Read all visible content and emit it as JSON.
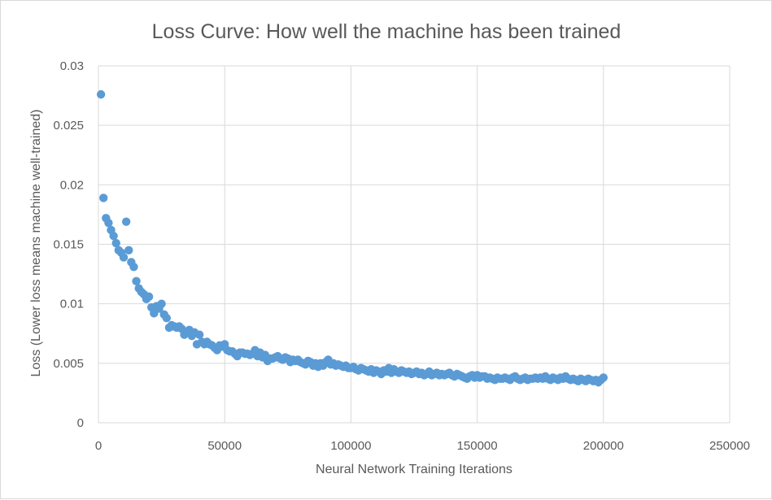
{
  "chart_data": {
    "type": "scatter",
    "title": "Loss Curve: How well the machine has been trained",
    "xlabel": "Neural Network Training Iterations",
    "ylabel": "Loss (Lower loss means machine well-trained)",
    "xlim": [
      0,
      250000
    ],
    "ylim": [
      0,
      0.03
    ],
    "x_ticks": [
      0,
      50000,
      100000,
      150000,
      200000,
      250000
    ],
    "y_ticks": [
      0,
      0.005,
      0.01,
      0.015,
      0.02,
      0.025,
      0.03
    ],
    "x_tick_labels": [
      "0",
      "50000",
      "100000",
      "150000",
      "200000",
      "250000"
    ],
    "y_tick_labels": [
      "0",
      "0.005",
      "0.01",
      "0.015",
      "0.02",
      "0.025",
      "0.03"
    ],
    "grid": true,
    "marker_color": "#5b9bd5",
    "series": [
      {
        "points": [
          [
            1000,
            0.0276
          ],
          [
            2000,
            0.0189
          ],
          [
            3000,
            0.0172
          ],
          [
            4000,
            0.0168
          ],
          [
            5000,
            0.0162
          ],
          [
            6000,
            0.0157
          ],
          [
            7000,
            0.0151
          ],
          [
            8000,
            0.0145
          ],
          [
            9000,
            0.0143
          ],
          [
            10000,
            0.0139
          ],
          [
            11000,
            0.0169
          ],
          [
            12000,
            0.0145
          ],
          [
            13000,
            0.0135
          ],
          [
            14000,
            0.0131
          ],
          [
            15000,
            0.0119
          ],
          [
            16000,
            0.0113
          ],
          [
            17000,
            0.011
          ],
          [
            18000,
            0.0108
          ],
          [
            19000,
            0.0104
          ],
          [
            20000,
            0.0106
          ],
          [
            21000,
            0.0097
          ],
          [
            22000,
            0.0092
          ],
          [
            23000,
            0.0098
          ],
          [
            24000,
            0.0096
          ],
          [
            25000,
            0.01
          ],
          [
            26000,
            0.0091
          ],
          [
            27000,
            0.0088
          ],
          [
            28000,
            0.008
          ],
          [
            29000,
            0.0082
          ],
          [
            30000,
            0.0081
          ],
          [
            31000,
            0.008
          ],
          [
            32000,
            0.0081
          ],
          [
            33000,
            0.0079
          ],
          [
            34000,
            0.0074
          ],
          [
            35000,
            0.0076
          ],
          [
            36000,
            0.0078
          ],
          [
            37000,
            0.0073
          ],
          [
            38000,
            0.0076
          ],
          [
            39000,
            0.0066
          ],
          [
            40000,
            0.0074
          ],
          [
            41000,
            0.0068
          ],
          [
            42000,
            0.0066
          ],
          [
            43000,
            0.0068
          ],
          [
            44000,
            0.0066
          ],
          [
            45000,
            0.0065
          ],
          [
            46000,
            0.0063
          ],
          [
            47000,
            0.0061
          ],
          [
            48000,
            0.0065
          ],
          [
            49000,
            0.0064
          ],
          [
            50000,
            0.0066
          ],
          [
            51000,
            0.0061
          ],
          [
            52000,
            0.006
          ],
          [
            53000,
            0.006
          ],
          [
            54000,
            0.0058
          ],
          [
            55000,
            0.0056
          ],
          [
            56000,
            0.0059
          ],
          [
            57000,
            0.0059
          ],
          [
            58000,
            0.0058
          ],
          [
            59000,
            0.0058
          ],
          [
            60000,
            0.0057
          ],
          [
            61000,
            0.0058
          ],
          [
            62000,
            0.0061
          ],
          [
            63000,
            0.0056
          ],
          [
            64000,
            0.0059
          ],
          [
            65000,
            0.0055
          ],
          [
            66000,
            0.0057
          ],
          [
            67000,
            0.0052
          ],
          [
            68000,
            0.0054
          ],
          [
            69000,
            0.0054
          ],
          [
            70000,
            0.0055
          ],
          [
            71000,
            0.0056
          ],
          [
            72000,
            0.0054
          ],
          [
            73000,
            0.0053
          ],
          [
            74000,
            0.0055
          ],
          [
            75000,
            0.0054
          ],
          [
            76000,
            0.0051
          ],
          [
            77000,
            0.0053
          ],
          [
            78000,
            0.0052
          ],
          [
            79000,
            0.0053
          ],
          [
            80000,
            0.0051
          ],
          [
            81000,
            0.005
          ],
          [
            82000,
            0.0049
          ],
          [
            83000,
            0.0052
          ],
          [
            84000,
            0.0051
          ],
          [
            85000,
            0.0048
          ],
          [
            86000,
            0.005
          ],
          [
            87000,
            0.0047
          ],
          [
            88000,
            0.005
          ],
          [
            89000,
            0.0048
          ],
          [
            90000,
            0.0051
          ],
          [
            91000,
            0.0053
          ],
          [
            92000,
            0.0049
          ],
          [
            93000,
            0.005
          ],
          [
            94000,
            0.0048
          ],
          [
            95000,
            0.0049
          ],
          [
            96000,
            0.0048
          ],
          [
            97000,
            0.0047
          ],
          [
            98000,
            0.0048
          ],
          [
            99000,
            0.0046
          ],
          [
            100000,
            0.0046
          ],
          [
            101000,
            0.0047
          ],
          [
            102000,
            0.0045
          ],
          [
            103000,
            0.0044
          ],
          [
            104000,
            0.0046
          ],
          [
            105000,
            0.0045
          ],
          [
            106000,
            0.0044
          ],
          [
            107000,
            0.0043
          ],
          [
            108000,
            0.0045
          ],
          [
            109000,
            0.0042
          ],
          [
            110000,
            0.0044
          ],
          [
            111000,
            0.0043
          ],
          [
            112000,
            0.0041
          ],
          [
            113000,
            0.0044
          ],
          [
            114000,
            0.0043
          ],
          [
            115000,
            0.0046
          ],
          [
            116000,
            0.0042
          ],
          [
            117000,
            0.0045
          ],
          [
            118000,
            0.0043
          ],
          [
            119000,
            0.0042
          ],
          [
            120000,
            0.0044
          ],
          [
            121000,
            0.0043
          ],
          [
            122000,
            0.0042
          ],
          [
            123000,
            0.0043
          ],
          [
            124000,
            0.0041
          ],
          [
            125000,
            0.0042
          ],
          [
            126000,
            0.0043
          ],
          [
            127000,
            0.0041
          ],
          [
            128000,
            0.0042
          ],
          [
            129000,
            0.004
          ],
          [
            130000,
            0.0041
          ],
          [
            131000,
            0.0043
          ],
          [
            132000,
            0.004
          ],
          [
            133000,
            0.0041
          ],
          [
            134000,
            0.0042
          ],
          [
            135000,
            0.004
          ],
          [
            136000,
            0.0041
          ],
          [
            137000,
            0.004
          ],
          [
            138000,
            0.0041
          ],
          [
            139000,
            0.0042
          ],
          [
            140000,
            0.004
          ],
          [
            141000,
            0.0039
          ],
          [
            142000,
            0.0041
          ],
          [
            143000,
            0.004
          ],
          [
            144000,
            0.0039
          ],
          [
            145000,
            0.0038
          ],
          [
            146000,
            0.0037
          ],
          [
            147000,
            0.0039
          ],
          [
            148000,
            0.004
          ],
          [
            149000,
            0.0038
          ],
          [
            150000,
            0.004
          ],
          [
            151000,
            0.0038
          ],
          [
            152000,
            0.0039
          ],
          [
            153000,
            0.0039
          ],
          [
            154000,
            0.0037
          ],
          [
            155000,
            0.0038
          ],
          [
            156000,
            0.0037
          ],
          [
            157000,
            0.0036
          ],
          [
            158000,
            0.0038
          ],
          [
            159000,
            0.0037
          ],
          [
            160000,
            0.0037
          ],
          [
            161000,
            0.0038
          ],
          [
            162000,
            0.0037
          ],
          [
            163000,
            0.0036
          ],
          [
            164000,
            0.0038
          ],
          [
            165000,
            0.0039
          ],
          [
            166000,
            0.0037
          ],
          [
            167000,
            0.0036
          ],
          [
            168000,
            0.0037
          ],
          [
            169000,
            0.0038
          ],
          [
            170000,
            0.0036
          ],
          [
            171000,
            0.0037
          ],
          [
            172000,
            0.0037
          ],
          [
            173000,
            0.0038
          ],
          [
            174000,
            0.0037
          ],
          [
            175000,
            0.0038
          ],
          [
            176000,
            0.0037
          ],
          [
            177000,
            0.0039
          ],
          [
            178000,
            0.0037
          ],
          [
            179000,
            0.0036
          ],
          [
            180000,
            0.0038
          ],
          [
            181000,
            0.0037
          ],
          [
            182000,
            0.0036
          ],
          [
            183000,
            0.0038
          ],
          [
            184000,
            0.0037
          ],
          [
            185000,
            0.0039
          ],
          [
            186000,
            0.0037
          ],
          [
            187000,
            0.0036
          ],
          [
            188000,
            0.0037
          ],
          [
            189000,
            0.0036
          ],
          [
            190000,
            0.0035
          ],
          [
            191000,
            0.0037
          ],
          [
            192000,
            0.0036
          ],
          [
            193000,
            0.0035
          ],
          [
            194000,
            0.0037
          ],
          [
            195000,
            0.0036
          ],
          [
            196000,
            0.0035
          ],
          [
            197000,
            0.0036
          ],
          [
            198000,
            0.0034
          ],
          [
            199000,
            0.0036
          ],
          [
            200000,
            0.0038
          ]
        ]
      }
    ]
  }
}
